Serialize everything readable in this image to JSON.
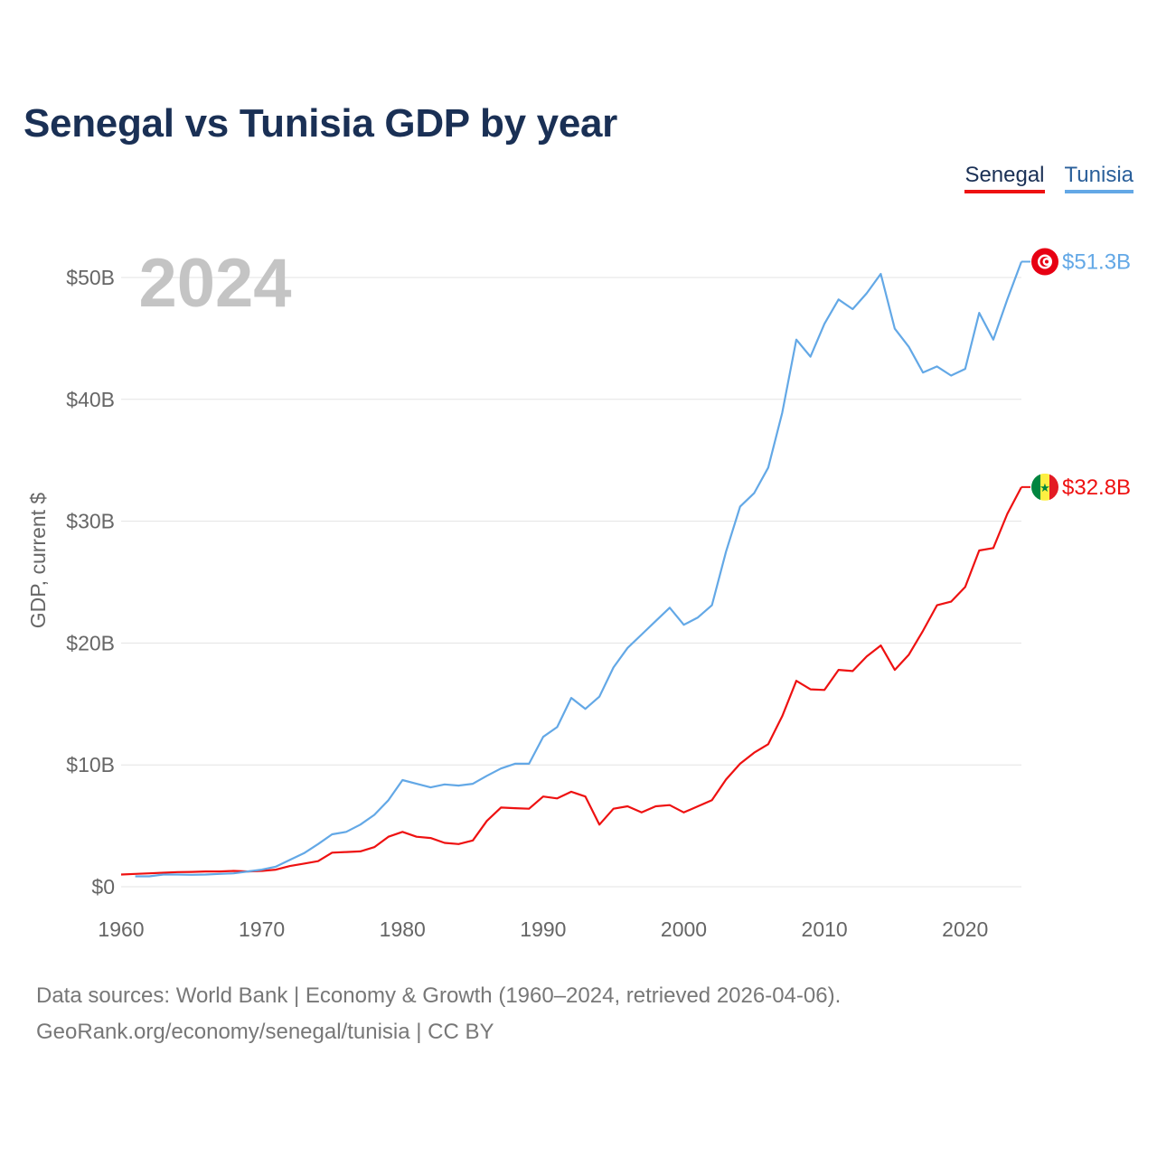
{
  "title": "Senegal vs Tunisia GDP by year",
  "legend": {
    "senegal": "Senegal",
    "tunisia": "Tunisia"
  },
  "year_watermark": "2024",
  "footer": {
    "line1": "Data sources: World Bank | Economy & Growth (1960–2024, retrieved 2026-04-06).",
    "line2": "GeoRank.org/economy/senegal/tunisia | CC BY"
  },
  "colors": {
    "senegal": "#ee1111",
    "tunisia": "#63a8e6",
    "title": "#1a3055"
  },
  "chart_data": {
    "type": "line",
    "title": "Senegal vs Tunisia GDP by year",
    "xlabel": "",
    "ylabel": "GDP, current $",
    "xlim": [
      1960,
      2024
    ],
    "ylim": [
      0,
      53
    ],
    "x_ticks": [
      1960,
      1970,
      1980,
      1990,
      2000,
      2010,
      2020
    ],
    "y_ticks": [
      0,
      10,
      20,
      30,
      40,
      50
    ],
    "y_tick_labels": [
      "$0",
      "$10B",
      "$20B",
      "$30B",
      "$40B",
      "$50B"
    ],
    "grid": true,
    "legend_position": "top-right",
    "series": [
      {
        "name": "Senegal",
        "color": "#ee1111",
        "end_label": "$32.8B",
        "start_year": 1960,
        "values": [
          1.0,
          1.05,
          1.1,
          1.15,
          1.2,
          1.22,
          1.25,
          1.25,
          1.3,
          1.25,
          1.3,
          1.4,
          1.7,
          1.9,
          2.1,
          2.8,
          2.85,
          2.9,
          3.25,
          4.1,
          4.5,
          4.1,
          4.0,
          3.6,
          3.5,
          3.8,
          5.4,
          6.5,
          6.45,
          6.4,
          7.4,
          7.25,
          7.8,
          7.4,
          5.1,
          6.4,
          6.6,
          6.1,
          6.6,
          6.7,
          6.1,
          6.6,
          7.1,
          8.8,
          10.1,
          11.0,
          11.7,
          14.0,
          16.9,
          16.2,
          16.15,
          17.8,
          17.7,
          18.9,
          19.8,
          17.8,
          19.05,
          21.0,
          23.1,
          23.4,
          24.6,
          27.6,
          27.8,
          30.6,
          32.8
        ]
      },
      {
        "name": "Tunisia",
        "color": "#63a8e6",
        "end_label": "$51.3B",
        "start_year": 1961,
        "values": [
          0.85,
          0.85,
          1.0,
          1.0,
          0.98,
          1.0,
          1.05,
          1.1,
          1.25,
          1.4,
          1.65,
          2.2,
          2.75,
          3.5,
          4.3,
          4.5,
          5.1,
          5.9,
          7.1,
          8.75,
          8.45,
          8.15,
          8.4,
          8.3,
          8.45,
          9.1,
          9.7,
          10.1,
          10.1,
          12.3,
          13.1,
          15.5,
          14.6,
          15.6,
          18.0,
          19.6,
          20.7,
          21.8,
          22.9,
          21.5,
          22.1,
          23.1,
          27.5,
          31.2,
          32.3,
          34.4,
          38.9,
          44.9,
          43.5,
          46.2,
          48.2,
          47.4,
          48.7,
          50.3,
          45.8,
          44.3,
          42.2,
          42.7,
          41.95,
          42.5,
          47.1,
          44.9,
          48.2,
          51.3
        ]
      }
    ]
  }
}
